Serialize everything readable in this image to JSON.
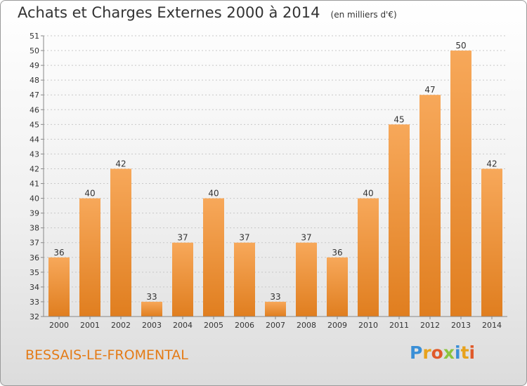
{
  "header": {
    "title": "Achats et Charges Externes 2000 à 2014",
    "unit": "(en milliers d'€)"
  },
  "footer": {
    "city": "BESSAIS-LE-FROMENTAL",
    "logo": [
      "P",
      "r",
      "o",
      "x",
      "i",
      "t",
      "i"
    ],
    "logo_colors": [
      "#3a8fd6",
      "#e8a21c",
      "#e05a2a",
      "#8cc43f",
      "#3a8fd6",
      "#e8a21c",
      "#e05a2a"
    ]
  },
  "colors": {
    "bar_top": "#f7a85a",
    "bar_bottom": "#e07e1f",
    "grid": "#c8c8c8",
    "axis": "#888888"
  },
  "chart_data": {
    "type": "bar",
    "title": "Achats et Charges Externes 2000 à 2014",
    "subtitle": "(en milliers d'€)",
    "categories": [
      "2000",
      "2001",
      "2002",
      "2003",
      "2004",
      "2005",
      "2006",
      "2007",
      "2008",
      "2009",
      "2010",
      "2011",
      "2012",
      "2013",
      "2014"
    ],
    "values": [
      36,
      40,
      42,
      33,
      37,
      40,
      37,
      33,
      37,
      36,
      40,
      45,
      47,
      50,
      42
    ],
    "ylim": [
      32,
      51
    ],
    "yticks": [
      32,
      33,
      34,
      35,
      36,
      37,
      38,
      39,
      40,
      41,
      42,
      43,
      44,
      45,
      46,
      47,
      48,
      49,
      50,
      51
    ],
    "grid": true
  }
}
